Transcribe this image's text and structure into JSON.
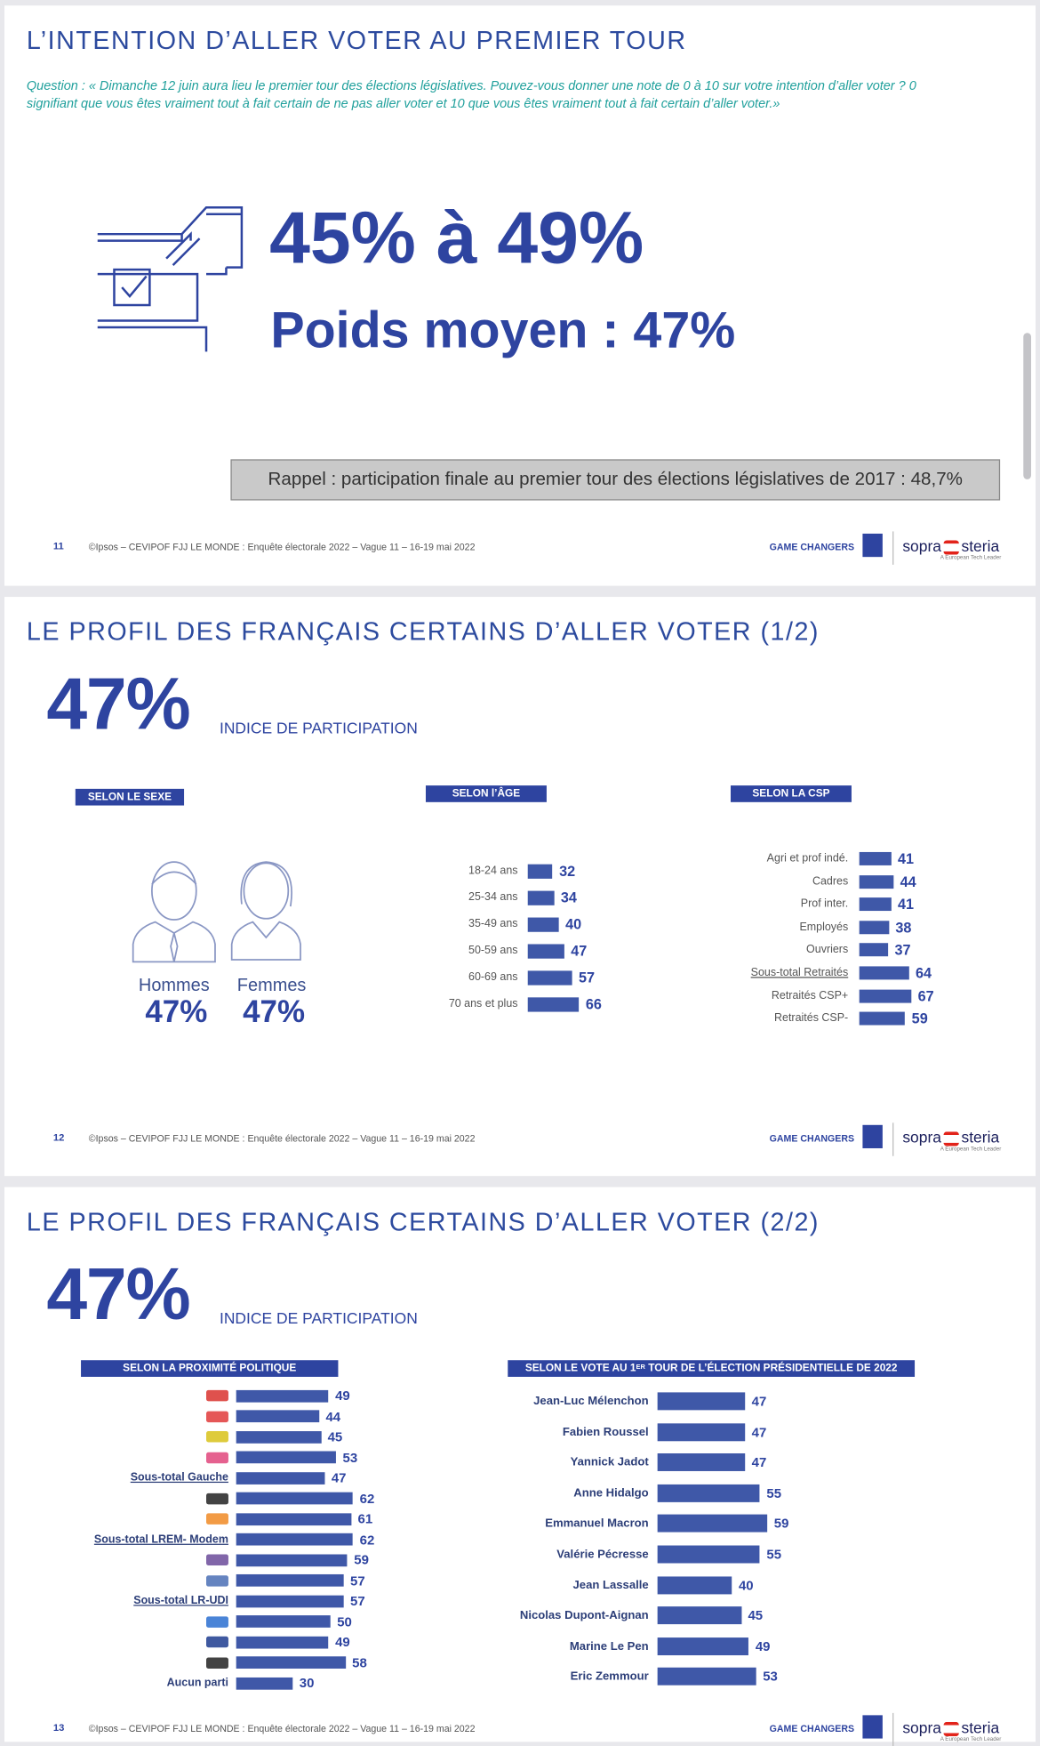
{
  "slides": [
    {
      "title": "L’INTENTION D’ALLER VOTER AU PREMIER TOUR",
      "question": "Question : « Dimanche 12 juin aura lieu le premier tour des élections législatives. Pouvez-vous donner une note de 0 à 10 sur votre intention d’aller voter ? 0 signifiant que vous êtes vraiment tout à fait certain de ne pas aller voter et 10 que vous êtes vraiment tout à fait certain d’aller voter.»",
      "range": "45% à 49%",
      "average": "Poids moyen : 47%",
      "reminder": "Rappel : participation finale au premier tour des élections législatives de 2017 : 48,7%",
      "page": "11"
    },
    {
      "title": "LE PROFIL DES FRANÇAIS CERTAINS D’ALLER VOTER (1/2)",
      "index": "47%",
      "index_label": "INDICE DE PARTICIPATION",
      "sex": {
        "header": "SELON LE SEXE",
        "groups": [
          {
            "label": "Hommes",
            "value": "47%"
          },
          {
            "label": "Femmes",
            "value": "47%"
          }
        ]
      },
      "age": {
        "header": "SELON l’ÂGE",
        "categories": [
          "18-24 ans",
          "25-34 ans",
          "35-49 ans",
          "50-59 ans",
          "60-69 ans",
          "70 ans et plus"
        ],
        "values": [
          32,
          34,
          40,
          47,
          57,
          66
        ]
      },
      "csp": {
        "header": "SELON LA CSP",
        "categories": [
          "Agri et prof indé.",
          "Cadres",
          "Prof inter.",
          "Employés",
          "Ouvriers",
          "Sous-total Retraités",
          "Retraités CSP+",
          "Retraités CSP-"
        ],
        "values": [
          41,
          44,
          41,
          38,
          37,
          64,
          67,
          59
        ]
      },
      "page": "12"
    },
    {
      "title": "LE PROFIL DES FRANÇAIS CERTAINS D’ALLER VOTER (2/2)",
      "index": "47%",
      "index_label": "INDICE DE PARTICIPATION",
      "politics": {
        "header": "SELON LA PROXIMITÉ POLITIQUE",
        "categories": [
          null,
          null,
          null,
          null,
          "Sous-total Gauche",
          null,
          null,
          "Sous-total LREM- Modem",
          null,
          null,
          "Sous-total LR-UDI",
          null,
          null,
          null,
          "Aucun parti"
        ],
        "values": [
          49,
          44,
          45,
          53,
          47,
          62,
          61,
          62,
          59,
          57,
          57,
          50,
          49,
          58,
          30
        ]
      },
      "presidential": {
        "header_parts": [
          "SELON LE VOTE AU 1",
          "ER",
          " TOUR DE L’ÉLECTION PRÉSIDENTIELLE DE 2022"
        ],
        "categories": [
          "Jean-Luc Mélenchon",
          "Fabien Roussel",
          "Yannick Jadot",
          "Anne Hidalgo",
          "Emmanuel Macron",
          "Valérie Pécresse",
          "Jean Lassalle",
          "Nicolas Dupont-Aignan",
          "Marine Le Pen",
          "Eric Zemmour"
        ],
        "values": [
          47,
          47,
          47,
          55,
          59,
          55,
          40,
          45,
          49,
          53
        ]
      },
      "page": "13"
    }
  ],
  "footer": "©Ipsos – CEVIPOF FJJ LE MONDE : Enquête électorale 2022 – Vague 11 – 16-19 mai 2022",
  "brand": {
    "game_changers": "GAME CHANGERS",
    "sopra": "sopra",
    "steria": "steria",
    "tagline": "A European Tech Leader"
  }
}
